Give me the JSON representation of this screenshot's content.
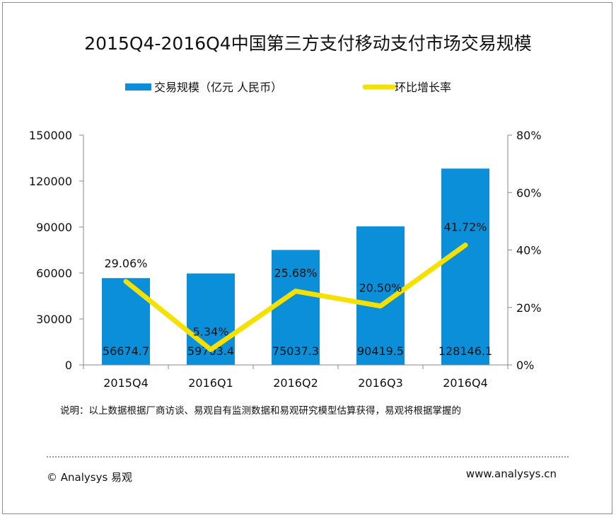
{
  "chart_data": {
    "type": "bar+line",
    "title": "2015Q4-2016Q4中国第三方支付移动支付市场交易规模",
    "categories": [
      "2015Q4",
      "2016Q1",
      "2016Q2",
      "2016Q3",
      "2016Q4"
    ],
    "series": [
      {
        "name": "交易规模（亿元 人民币）",
        "type": "bar",
        "axis": "left",
        "color": "#0a8fd8",
        "values": [
          56674.7,
          59703.4,
          75037.3,
          90419.5,
          128146.1
        ],
        "labels": [
          "56674.7",
          "59703.4",
          "75037.3",
          "90419.5",
          "128146.1"
        ]
      },
      {
        "name": "环比增长率",
        "type": "line",
        "axis": "right",
        "color": "#f5e100",
        "values": [
          29.06,
          5.34,
          25.68,
          20.5,
          41.72
        ],
        "labels": [
          "29.06%",
          "5.34%",
          "25.68%",
          "20.50%",
          "41.72%"
        ]
      }
    ],
    "y_left": {
      "range": [
        0,
        150000
      ],
      "ticks": [
        "0",
        "30000",
        "60000",
        "90000",
        "120000",
        "150000"
      ]
    },
    "y_right": {
      "range": [
        0,
        80
      ],
      "ticks": [
        "0%",
        "20%",
        "40%",
        "60%",
        "80%"
      ]
    },
    "legend_placement": "top",
    "grid": false
  },
  "footer": {
    "note": "说明：以上数据根据厂商访谈、易观自有监测数据和易观研究模型估算获得，易观将根据掌握的",
    "copyright": "© Analysys 易观",
    "website": "www.analysys.cn"
  }
}
